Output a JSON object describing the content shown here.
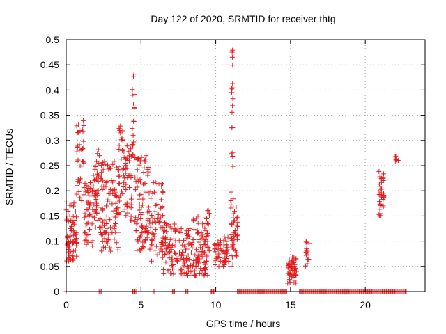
{
  "chart_data": {
    "type": "scatter",
    "title": "Day 122 of 2020, SRMTID for receiver thtg",
    "xlabel": "GPS time / hours",
    "ylabel": "SRMTID / TECUs",
    "xlim": [
      0,
      24
    ],
    "ylim": [
      0,
      0.5
    ],
    "x_ticks": [
      0,
      5,
      10,
      15,
      20
    ],
    "x_tick_labels": [
      "0",
      "5",
      "10",
      "15",
      "20"
    ],
    "y_ticks": [
      0,
      0.05,
      0.1,
      0.15,
      0.2,
      0.25,
      0.3,
      0.35,
      0.4,
      0.45,
      0.5
    ],
    "y_tick_labels": [
      "0",
      "0.05",
      "0.1",
      "0.15",
      "0.2",
      "0.25",
      "0.3",
      "0.35",
      "0.4",
      "0.45",
      "0.5"
    ],
    "grid": true,
    "marker": "+",
    "marker_color": "#e41a1c",
    "axis_color": "#000000",
    "grid_color": "#a0a0a0",
    "zero_segments": [
      [
        0,
        0.05
      ],
      [
        2.2,
        2.35
      ],
      [
        4.45,
        4.7
      ],
      [
        5.8,
        5.95
      ],
      [
        7.1,
        7.25
      ],
      [
        8.0,
        8.15
      ],
      [
        9.65,
        9.95
      ],
      [
        11.45,
        14.8
      ],
      [
        15.6,
        22.8
      ]
    ],
    "clusters": [
      {
        "x0": 0.0,
        "x1": 0.7,
        "y0": 0.06,
        "y1": 0.18,
        "n": 80
      },
      {
        "x0": 0.7,
        "x1": 1.2,
        "y0": 0.18,
        "y1": 0.34,
        "n": 40
      },
      {
        "x0": 1.2,
        "x1": 1.8,
        "y0": 0.09,
        "y1": 0.22,
        "n": 50
      },
      {
        "x0": 1.8,
        "x1": 2.3,
        "y0": 0.12,
        "y1": 0.3,
        "n": 45
      },
      {
        "x0": 2.3,
        "x1": 3.5,
        "y0": 0.08,
        "y1": 0.26,
        "n": 100
      },
      {
        "x0": 3.5,
        "x1": 3.8,
        "y0": 0.15,
        "y1": 0.33,
        "n": 25
      },
      {
        "x0": 3.8,
        "x1": 4.4,
        "y0": 0.14,
        "y1": 0.29,
        "n": 45
      },
      {
        "x0": 4.4,
        "x1": 4.55,
        "y0": 0.25,
        "y1": 0.45,
        "n": 18
      },
      {
        "x0": 4.6,
        "x1": 5.5,
        "y0": 0.08,
        "y1": 0.27,
        "n": 80
      },
      {
        "x0": 5.5,
        "x1": 6.5,
        "y0": 0.06,
        "y1": 0.22,
        "n": 70
      },
      {
        "x0": 6.5,
        "x1": 7.5,
        "y0": 0.03,
        "y1": 0.14,
        "n": 70
      },
      {
        "x0": 7.5,
        "x1": 8.5,
        "y0": 0.03,
        "y1": 0.13,
        "n": 60
      },
      {
        "x0": 8.5,
        "x1": 9.5,
        "y0": 0.03,
        "y1": 0.15,
        "n": 80
      },
      {
        "x0": 9.3,
        "x1": 9.6,
        "y0": 0.08,
        "y1": 0.17,
        "n": 15
      },
      {
        "x0": 9.9,
        "x1": 10.9,
        "y0": 0.05,
        "y1": 0.11,
        "n": 60
      },
      {
        "x0": 11.0,
        "x1": 11.2,
        "y0": 0.05,
        "y1": 0.2,
        "n": 25
      },
      {
        "x0": 11.05,
        "x1": 11.15,
        "y0": 0.24,
        "y1": 0.48,
        "n": 18
      },
      {
        "x0": 11.2,
        "x1": 11.5,
        "y0": 0.06,
        "y1": 0.17,
        "n": 25
      },
      {
        "x0": 14.8,
        "x1": 15.4,
        "y0": 0.015,
        "y1": 0.07,
        "n": 60
      },
      {
        "x0": 16.0,
        "x1": 16.25,
        "y0": 0.045,
        "y1": 0.1,
        "n": 15
      },
      {
        "x0": 20.9,
        "x1": 21.25,
        "y0": 0.14,
        "y1": 0.25,
        "n": 35
      },
      {
        "x0": 22.0,
        "x1": 22.2,
        "y0": 0.255,
        "y1": 0.275,
        "n": 6
      }
    ]
  }
}
